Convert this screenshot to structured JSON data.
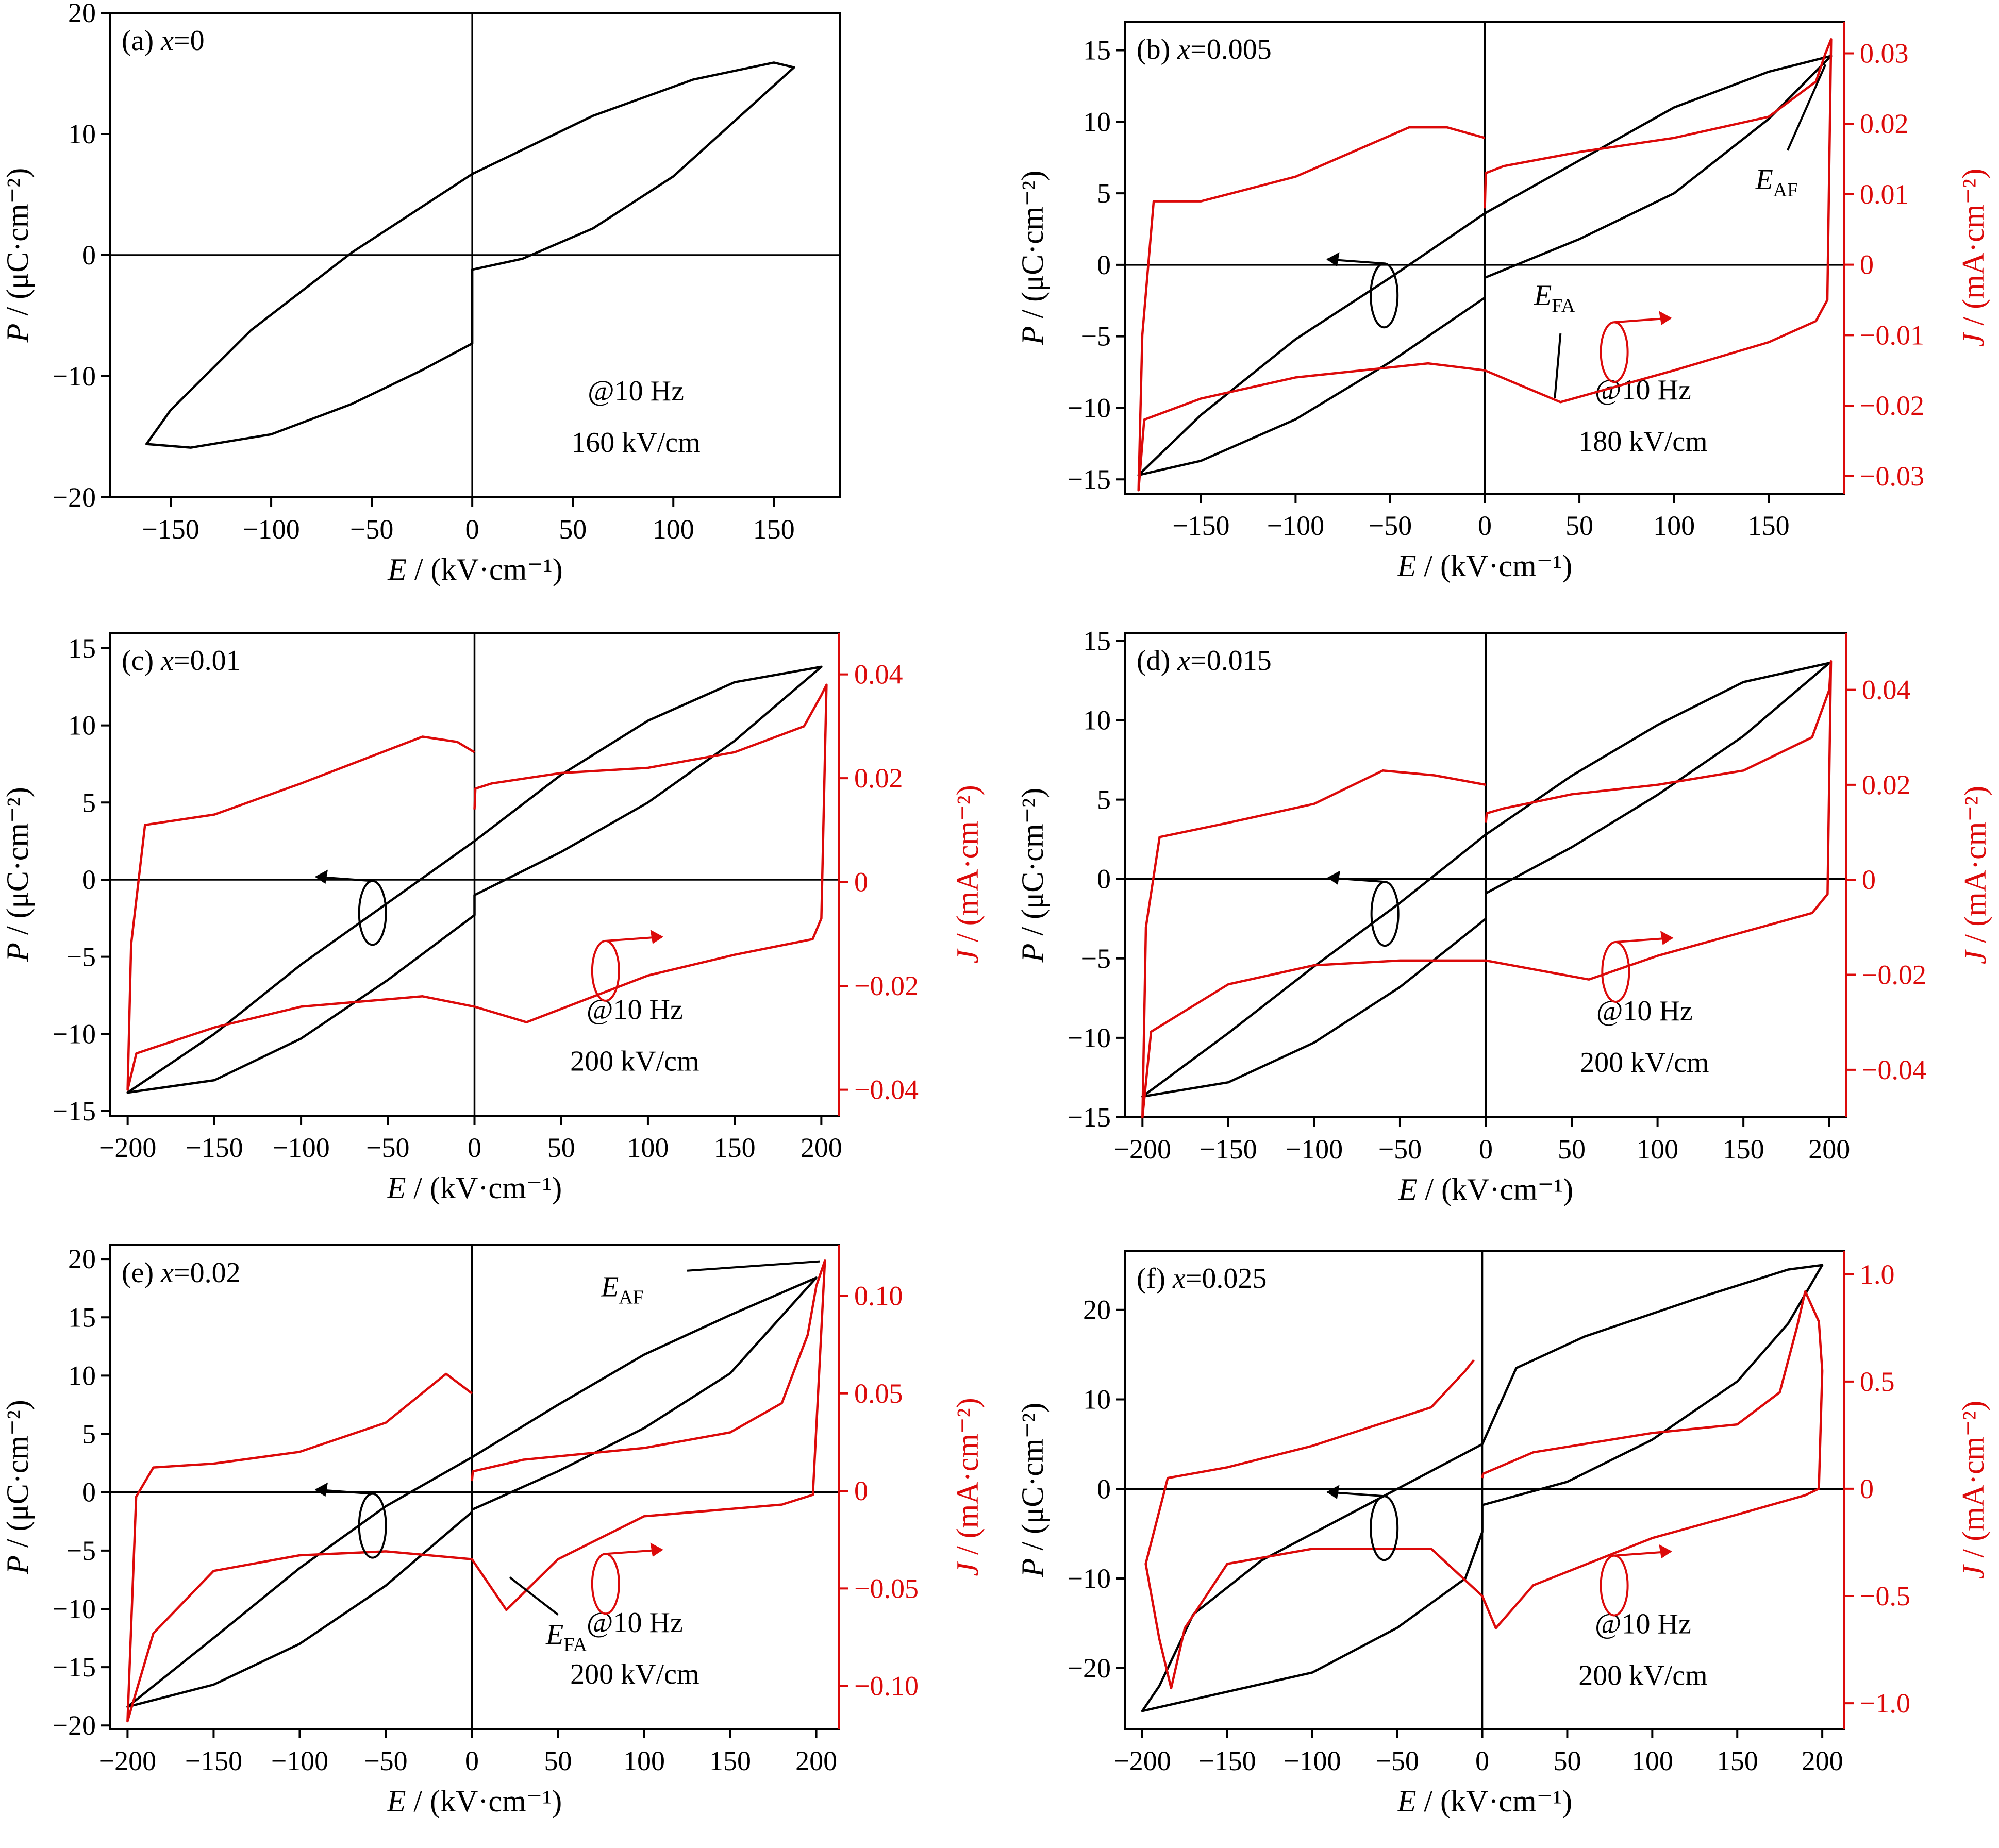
{
  "chart_data": [
    {
      "type": "line",
      "panel": "(a)",
      "composition": "x=0",
      "xlabel": "E / (kV·cm⁻¹)",
      "ylabel": "P / (μC·cm⁻²)",
      "xlim": [
        -180,
        183
      ],
      "ylim": [
        -20,
        20
      ],
      "xticks": [
        -150,
        -100,
        -50,
        0,
        50,
        100,
        150
      ],
      "yticks": [
        -20,
        -10,
        0,
        10,
        20
      ],
      "frequency": "@10 Hz",
      "field": "160 kV/cm",
      "pe": {
        "x": [
          0,
          25,
          60,
          100,
          140,
          160,
          150,
          110,
          60,
          0,
          -60,
          -110,
          -150,
          -162,
          -140,
          -100,
          -60,
          -25,
          0
        ],
        "y": [
          -1.2,
          -0.3,
          2.2,
          6.5,
          12.5,
          15.5,
          15.9,
          14.5,
          11.5,
          6.7,
          0.2,
          -6.2,
          -12.8,
          -15.6,
          -15.9,
          -14.8,
          -12.3,
          -9.5,
          -7.3
        ]
      }
    },
    {
      "type": "line",
      "panel": "(b)",
      "composition": "x=0.005",
      "xlabel": "E / (kV·cm⁻¹)",
      "ylabel": "P / (μC·cm⁻²)",
      "y2label": "J / (mA·cm⁻²)",
      "xlim": [
        -190,
        190
      ],
      "ylim": [
        -16,
        17
      ],
      "y2lim": [
        -0.0325,
        0.0345
      ],
      "xticks": [
        -150,
        -100,
        -50,
        0,
        50,
        100,
        150
      ],
      "yticks": [
        -15,
        -10,
        -5,
        0,
        5,
        10,
        15
      ],
      "y2ticks": [
        -0.03,
        -0.02,
        -0.01,
        0,
        0.01,
        0.02,
        0.03
      ],
      "y2ticklabels": [
        "−0.03",
        "−0.02",
        "−0.01",
        "0",
        "0.01",
        "0.02",
        "0.03"
      ],
      "frequency": "@10 Hz",
      "field": "180 kV/cm",
      "annotations": [
        "E_AF",
        "E_FA"
      ],
      "pe": {
        "x": [
          0,
          50,
          100,
          150,
          183,
          150,
          100,
          50,
          0,
          -50,
          -100,
          -150,
          -183,
          -150,
          -100,
          -50,
          0
        ],
        "y": [
          -0.9,
          1.8,
          5,
          10.2,
          14.6,
          13.5,
          11,
          7.3,
          3.6,
          -0.9,
          -5.2,
          -10.5,
          -14.7,
          -13.7,
          -10.8,
          -6.8,
          -2.3
        ]
      },
      "je": {
        "x": [
          0,
          0.5,
          10,
          50,
          100,
          150,
          175,
          180,
          183,
          181,
          175,
          150,
          100,
          40,
          0,
          -30,
          -100,
          -150,
          -180,
          -183,
          -181,
          -175,
          -150,
          -100,
          -40,
          -20,
          0
        ],
        "y": [
          0.008,
          0.013,
          0.014,
          0.016,
          0.018,
          0.021,
          0.026,
          0.03,
          0.032,
          -0.005,
          -0.008,
          -0.011,
          -0.015,
          -0.0195,
          -0.015,
          -0.014,
          -0.016,
          -0.019,
          -0.022,
          -0.032,
          -0.01,
          0.009,
          0.009,
          0.0125,
          0.0195,
          0.0195,
          0.018
        ]
      }
    },
    {
      "type": "line",
      "panel": "(c)",
      "composition": "x=0.01",
      "xlabel": "E / (kV·cm⁻¹)",
      "ylabel": "P / (μC·cm⁻²)",
      "y2label": "J / (mA·cm⁻²)",
      "xlim": [
        -210,
        210
      ],
      "ylim": [
        -15.3,
        16
      ],
      "y2lim": [
        -0.045,
        0.048
      ],
      "xticks": [
        -200,
        -150,
        -100,
        -50,
        0,
        50,
        100,
        150,
        200
      ],
      "yticks": [
        -15,
        -10,
        -5,
        0,
        5,
        10,
        15
      ],
      "y2ticks": [
        -0.04,
        -0.02,
        0,
        0.02,
        0.04
      ],
      "y2ticklabels": [
        "−0.04",
        "−0.02",
        "0",
        "0.02",
        "0.04"
      ],
      "frequency": "@10 Hz",
      "field": "200 kV/cm",
      "pe": {
        "x": [
          0,
          50,
          100,
          150,
          200,
          150,
          100,
          50,
          0,
          -50,
          -100,
          -150,
          -200,
          -150,
          -100,
          -50,
          0
        ],
        "y": [
          -1,
          1.8,
          5,
          9,
          13.8,
          12.8,
          10.3,
          6.8,
          2.5,
          -1.5,
          -5.5,
          -10,
          -13.8,
          -13,
          -10.3,
          -6.5,
          -2.3
        ]
      },
      "je": {
        "x": [
          0,
          0.5,
          10,
          50,
          100,
          150,
          190,
          200,
          203,
          200,
          195,
          150,
          100,
          30,
          0,
          -30,
          -100,
          -150,
          -195,
          -200,
          -198,
          -190,
          -150,
          -100,
          -30,
          -10,
          0
        ],
        "y": [
          0.014,
          0.018,
          0.019,
          0.021,
          0.022,
          0.025,
          0.03,
          0.036,
          0.038,
          -0.007,
          -0.011,
          -0.014,
          -0.018,
          -0.027,
          -0.024,
          -0.022,
          -0.024,
          -0.028,
          -0.033,
          -0.04,
          -0.012,
          0.011,
          0.013,
          0.019,
          0.028,
          0.027,
          0.025
        ]
      }
    },
    {
      "type": "line",
      "panel": "(d)",
      "composition": "x=0.015",
      "xlabel": "E / (kV·cm⁻¹)",
      "ylabel": "P / (μC·cm⁻²)",
      "y2label": "J / (mA·cm⁻²)",
      "xlim": [
        -210,
        210
      ],
      "ylim": [
        -15,
        15.5
      ],
      "y2lim": [
        -0.05,
        0.052
      ],
      "xticks": [
        -200,
        -150,
        -100,
        -50,
        0,
        50,
        100,
        150,
        200
      ],
      "yticks": [
        -15,
        -10,
        -5,
        0,
        5,
        10,
        15
      ],
      "y2ticks": [
        -0.04,
        -0.02,
        0,
        0.02,
        0.04
      ],
      "y2ticklabels": [
        "−0.04",
        "−0.02",
        "0",
        "0.02",
        "0.04"
      ],
      "frequency": "@10 Hz",
      "field": "200 kV/cm",
      "pe": {
        "x": [
          0,
          50,
          100,
          150,
          200,
          150,
          100,
          50,
          0,
          -50,
          -100,
          -150,
          -200,
          -150,
          -100,
          -50,
          0
        ],
        "y": [
          -0.9,
          2,
          5.3,
          9,
          13.6,
          12.4,
          9.7,
          6.5,
          2.8,
          -1.5,
          -5.5,
          -9.7,
          -13.7,
          -12.8,
          -10.3,
          -6.8,
          -2.5
        ]
      },
      "je": {
        "x": [
          0,
          0.5,
          10,
          50,
          100,
          150,
          190,
          200,
          201,
          199,
          190,
          150,
          100,
          60,
          0,
          -50,
          -100,
          -150,
          -195,
          -200,
          -198,
          -190,
          -150,
          -100,
          -60,
          -30,
          0
        ],
        "y": [
          0.012,
          0.014,
          0.015,
          0.018,
          0.02,
          0.023,
          0.03,
          0.04,
          0.046,
          -0.003,
          -0.007,
          -0.011,
          -0.016,
          -0.021,
          -0.017,
          -0.017,
          -0.018,
          -0.022,
          -0.032,
          -0.05,
          -0.01,
          0.009,
          0.012,
          0.016,
          0.023,
          0.022,
          0.02
        ]
      }
    },
    {
      "type": "line",
      "panel": "(e)",
      "composition": "x=0.02",
      "xlabel": "E / (kV·cm⁻¹)",
      "ylabel": "P / (μC·cm⁻²)",
      "y2label": "J / (mA·cm⁻²)",
      "xlim": [
        -210,
        213
      ],
      "ylim": [
        -20.3,
        21.2
      ],
      "y2lim": [
        -0.122,
        0.126
      ],
      "xticks": [
        -200,
        -150,
        -100,
        -50,
        0,
        50,
        100,
        150,
        200
      ],
      "yticks": [
        -20,
        -15,
        -10,
        -5,
        0,
        5,
        10,
        15,
        20
      ],
      "y2ticks": [
        -0.1,
        -0.05,
        0,
        0.05,
        0.1
      ],
      "y2ticklabels": [
        "−0.10",
        "−0.05",
        "0",
        "0.05",
        "0.10"
      ],
      "frequency": "@10 Hz",
      "field": "200 kV/cm",
      "annotations": [
        "E_AF",
        "E_FA"
      ],
      "pe": {
        "x": [
          0,
          50,
          100,
          150,
          200,
          150,
          100,
          50,
          0,
          -50,
          -100,
          -150,
          -200,
          -150,
          -100,
          -50,
          0
        ],
        "y": [
          -1.5,
          1.8,
          5.5,
          10.2,
          18.4,
          15.2,
          11.8,
          7.5,
          3,
          -1.2,
          -6.5,
          -12.5,
          -18.4,
          -16.5,
          -13,
          -8,
          -1.7
        ]
      },
      "je": {
        "x": [
          0,
          0.5,
          30,
          100,
          150,
          180,
          195,
          200,
          205,
          198,
          180,
          100,
          50,
          20,
          0,
          -50,
          -100,
          -150,
          -185,
          -200,
          -195,
          -185,
          -150,
          -100,
          -50,
          -15,
          0
        ],
        "y": [
          0.005,
          0.01,
          0.016,
          0.022,
          0.03,
          0.045,
          0.08,
          0.105,
          0.118,
          -0.002,
          -0.007,
          -0.013,
          -0.035,
          -0.061,
          -0.035,
          -0.031,
          -0.033,
          -0.041,
          -0.073,
          -0.118,
          -0.003,
          0.012,
          0.014,
          0.02,
          0.035,
          0.06,
          0.05
        ]
      }
    },
    {
      "type": "line",
      "panel": "(f)",
      "composition": "x=0.025",
      "xlabel": "E / (kV·cm⁻¹)",
      "ylabel": "P / (μC·cm⁻²)",
      "y2label": "J / (mA·cm⁻²)",
      "xlim": [
        -210,
        213
      ],
      "ylim": [
        -26.8,
        26.6
      ],
      "y2lim": [
        -1.12,
        1.11
      ],
      "xticks": [
        -200,
        -150,
        -100,
        -50,
        0,
        50,
        100,
        150,
        200
      ],
      "yticks": [
        -20,
        -10,
        0,
        10,
        20
      ],
      "y2ticks": [
        -1,
        -0.5,
        0,
        0.5,
        1
      ],
      "y2ticklabels": [
        "−1.0",
        "−0.5",
        "0",
        "0.5",
        "1.0"
      ],
      "frequency": "@10 Hz",
      "field": "200 kV/cm",
      "pe": {
        "x": [
          0,
          50,
          100,
          150,
          180,
          200,
          180,
          130,
          60,
          20,
          0,
          -20,
          -60,
          -130,
          -170,
          -190,
          -200,
          -170,
          -100,
          -50,
          -10,
          0
        ],
        "y": [
          -1.8,
          0.8,
          5.5,
          12,
          18.5,
          25,
          24.5,
          21.5,
          17,
          13.5,
          5,
          3,
          -1,
          -8,
          -14,
          -22,
          -24.8,
          -23.5,
          -20.5,
          -15.5,
          -10,
          -4.8
        ]
      },
      "je": {
        "x": [
          0,
          0.5,
          30,
          100,
          150,
          175,
          185,
          190,
          198,
          200,
          198,
          190,
          150,
          100,
          30,
          8,
          0,
          -30,
          -100,
          -150,
          -175,
          -183,
          -190,
          -198,
          -185,
          -150,
          -100,
          -30,
          -10,
          -5
        ],
        "y": [
          0.05,
          0.07,
          0.17,
          0.26,
          0.3,
          0.45,
          0.75,
          0.92,
          0.78,
          0.55,
          0.0,
          -0.03,
          -0.12,
          -0.23,
          -0.45,
          -0.65,
          -0.5,
          -0.28,
          -0.28,
          -0.35,
          -0.65,
          -0.93,
          -0.7,
          -0.35,
          0.05,
          0.1,
          0.2,
          0.38,
          0.55,
          0.6
        ]
      }
    }
  ]
}
